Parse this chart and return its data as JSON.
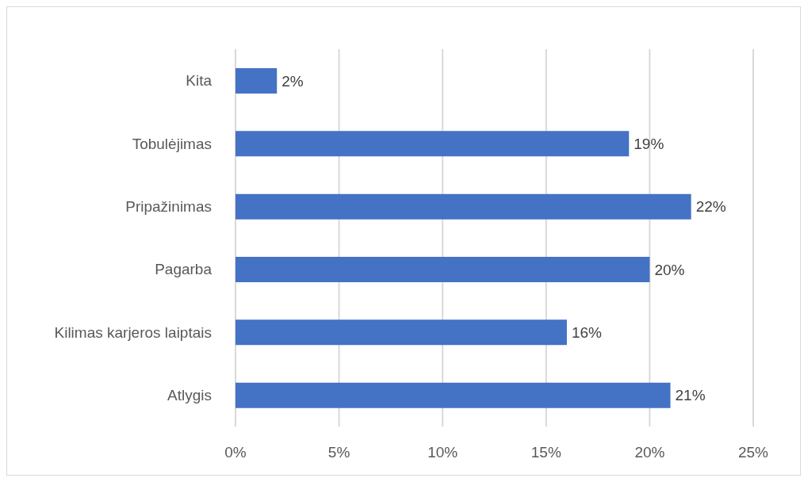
{
  "chart_data": {
    "type": "bar",
    "orientation": "horizontal",
    "categories": [
      "Kita",
      "Tobulėjimas",
      "Pripažinimas",
      "Pagarba",
      "Kilimas karjeros laiptais",
      "Atlygis"
    ],
    "values": [
      2,
      19,
      22,
      20,
      16,
      21
    ],
    "value_labels": [
      "2%",
      "19%",
      "22%",
      "20%",
      "16%",
      "21%"
    ],
    "color": "#4472c4",
    "xlim": [
      0,
      25
    ],
    "xticks": [
      {
        "value": 0,
        "label": "0%"
      },
      {
        "value": 5,
        "label": "5%"
      },
      {
        "value": 10,
        "label": "10%"
      },
      {
        "value": 15,
        "label": "15%"
      },
      {
        "value": 20,
        "label": "20%"
      },
      {
        "value": 25,
        "label": "25%"
      }
    ],
    "grid": "x"
  }
}
